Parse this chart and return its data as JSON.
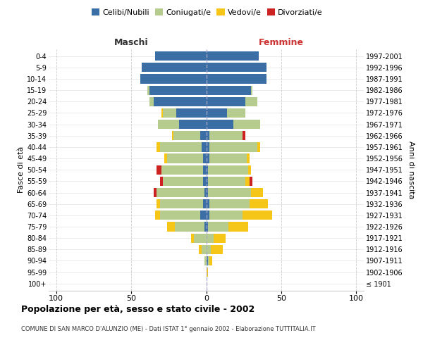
{
  "age_groups": [
    "100+",
    "95-99",
    "90-94",
    "85-89",
    "80-84",
    "75-79",
    "70-74",
    "65-69",
    "60-64",
    "55-59",
    "50-54",
    "45-49",
    "40-44",
    "35-39",
    "30-34",
    "25-29",
    "20-24",
    "15-19",
    "10-14",
    "5-9",
    "0-4"
  ],
  "birth_years": [
    "≤ 1901",
    "1902-1906",
    "1907-1911",
    "1912-1916",
    "1917-1921",
    "1922-1926",
    "1927-1931",
    "1932-1936",
    "1937-1941",
    "1942-1946",
    "1947-1951",
    "1952-1956",
    "1957-1961",
    "1962-1966",
    "1967-1971",
    "1972-1976",
    "1977-1981",
    "1982-1986",
    "1987-1991",
    "1992-1996",
    "1997-2001"
  ],
  "male_celibi": [
    0,
    0,
    0,
    0,
    0,
    1,
    4,
    2,
    1,
    2,
    2,
    2,
    3,
    4,
    18,
    20,
    35,
    38,
    44,
    43,
    34
  ],
  "male_coniugati": [
    0,
    0,
    1,
    3,
    8,
    20,
    27,
    29,
    32,
    27,
    28,
    24,
    28,
    18,
    14,
    9,
    3,
    1,
    0,
    0,
    0
  ],
  "male_vedovi": [
    0,
    0,
    0,
    2,
    2,
    5,
    3,
    2,
    0,
    0,
    0,
    2,
    2,
    1,
    0,
    1,
    0,
    0,
    0,
    0,
    0
  ],
  "male_divorziati": [
    0,
    0,
    0,
    0,
    0,
    0,
    0,
    0,
    2,
    2,
    3,
    0,
    0,
    0,
    0,
    0,
    0,
    0,
    0,
    0,
    0
  ],
  "female_nubili": [
    0,
    0,
    1,
    0,
    0,
    1,
    2,
    2,
    1,
    1,
    1,
    2,
    2,
    2,
    18,
    14,
    26,
    30,
    40,
    40,
    35
  ],
  "female_coniugate": [
    0,
    0,
    1,
    3,
    5,
    14,
    22,
    27,
    29,
    25,
    27,
    25,
    32,
    22,
    18,
    12,
    8,
    1,
    0,
    0,
    0
  ],
  "female_vedove": [
    0,
    1,
    2,
    8,
    8,
    13,
    20,
    12,
    8,
    3,
    2,
    2,
    2,
    0,
    0,
    0,
    0,
    0,
    0,
    0,
    0
  ],
  "female_divorziate": [
    0,
    0,
    0,
    0,
    0,
    0,
    0,
    0,
    0,
    2,
    0,
    0,
    0,
    2,
    0,
    0,
    0,
    0,
    0,
    0,
    0
  ],
  "colors": {
    "celibi_nubili": "#3A6EA5",
    "coniugati": "#B5CC8E",
    "vedovi": "#F5C518",
    "divorziati": "#CC2222"
  },
  "xlim": [
    -105,
    105
  ],
  "xticks": [
    -100,
    -50,
    0,
    50,
    100
  ],
  "xticklabels": [
    "100",
    "50",
    "0",
    "50",
    "100"
  ],
  "title": "Popolazione per età, sesso e stato civile - 2002",
  "subtitle": "COMUNE DI SAN MARCO D'ALUNZIO (ME) - Dati ISTAT 1° gennaio 2002 - Elaborazione TUTTITALIA.IT",
  "ylabel_left": "Fasce di età",
  "ylabel_right": "Anni di nascita",
  "header_maschi": "Maschi",
  "header_femmine": "Femmine",
  "legend_labels": [
    "Celibi/Nubili",
    "Coniugati/e",
    "Vedovi/e",
    "Divorziati/e"
  ],
  "bg_color": "#FFFFFF",
  "grid_color": "#CCCCCC"
}
